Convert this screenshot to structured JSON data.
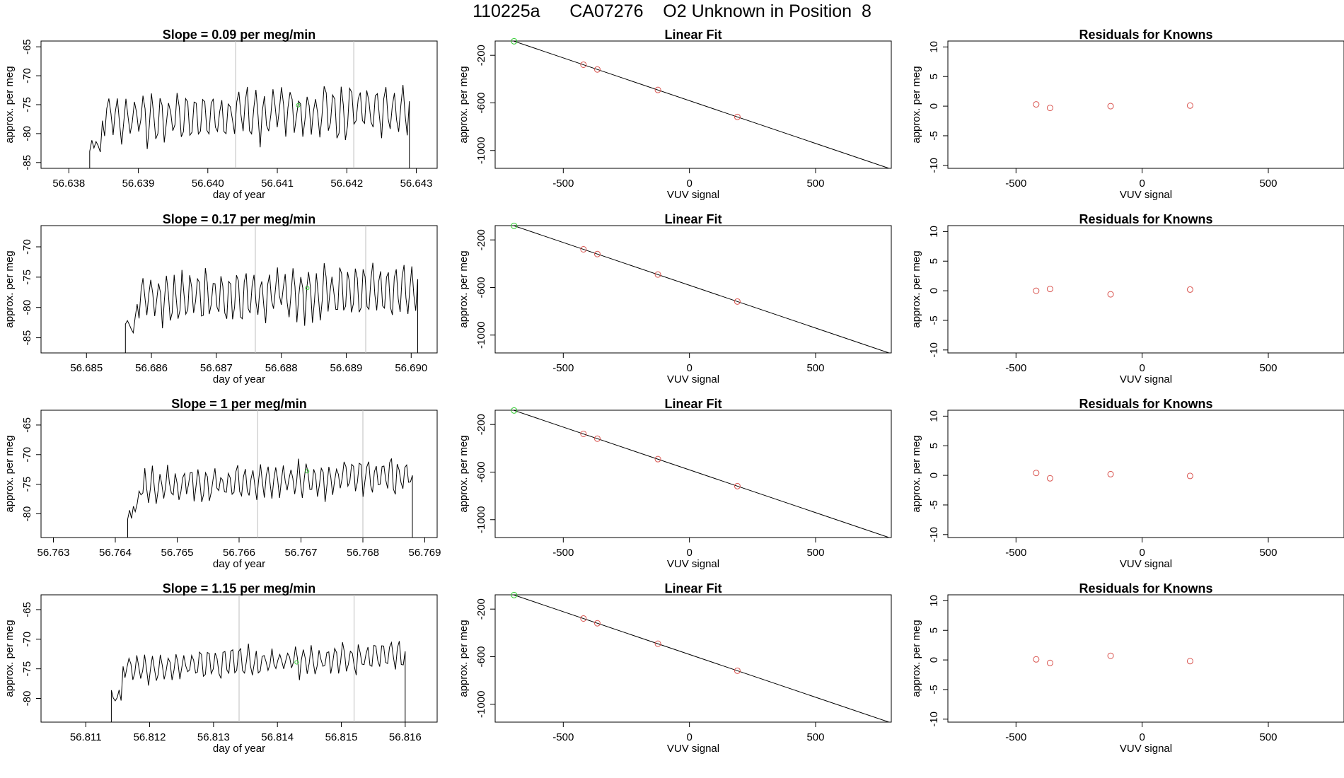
{
  "title": "110225a      CA07276    O2 Unknown in Position  8",
  "colors": {
    "line": "#000000",
    "known_point": "#d9544f",
    "unknown_point": "#33cc33",
    "marker_line": "#bdbdbd",
    "axis": "#000000"
  },
  "chart_data": [
    {
      "type": "line",
      "row": 1,
      "panel": "time-series",
      "title": "Slope =  0.09  per meg/min",
      "xlabel": "day of year",
      "ylabel": "approx. per meg",
      "xlim": [
        56.6376,
        56.6433
      ],
      "ylim": [
        -86,
        -64
      ],
      "xticks": [
        "56.638",
        "56.639",
        "56.640",
        "56.641",
        "56.642",
        "56.643"
      ],
      "yticks": [
        "-65",
        "-70",
        "-75",
        "-80",
        "-85"
      ],
      "series_start": 56.6383,
      "series_end": 56.6429,
      "base": -77.8,
      "amplitude": 4.5,
      "seed": 11,
      "vlines": [
        56.6404,
        56.6421
      ],
      "unknown_point": [
        56.6413,
        -75.1
      ]
    },
    {
      "type": "scatter",
      "row": 1,
      "panel": "linear-fit",
      "title": "Linear Fit",
      "xlabel": "VUV signal",
      "ylabel": "approx. per meg",
      "xlim": [
        -770,
        800
      ],
      "ylim": [
        -1150,
        -80
      ],
      "xticks": [
        "-500",
        "0",
        "500"
      ],
      "yticks": [
        "-200",
        "-600",
        "-1000"
      ],
      "fit_line": {
        "slope": -0.719,
        "intercept": -581.4,
        "x_from": -695,
        "x_to": 790
      },
      "known_points": [
        [
          -420,
          -279
        ],
        [
          -365,
          -319
        ],
        [
          -125,
          -491
        ],
        [
          190,
          -718
        ]
      ],
      "unknown_point": [
        -695,
        -82
      ]
    },
    {
      "type": "scatter",
      "row": 1,
      "panel": "residuals",
      "title": "Residuals for Knowns",
      "xlabel": "VUV signal",
      "ylabel": "approx. per meg",
      "xlim": [
        -770,
        800
      ],
      "ylim": [
        -10.5,
        11
      ],
      "xticks": [
        "-500",
        "0",
        "500"
      ],
      "yticks": [
        "10",
        "5",
        "0",
        "-5",
        "-10"
      ],
      "points": [
        [
          -420,
          0.3
        ],
        [
          -365,
          -0.3
        ],
        [
          -125,
          0.0
        ],
        [
          190,
          0.1
        ]
      ]
    },
    {
      "type": "line",
      "row": 2,
      "panel": "time-series",
      "title": "Slope =  0.17  per meg/min",
      "xlabel": "day of year",
      "ylabel": "approx. per meg",
      "xlim": [
        56.6843,
        56.6904
      ],
      "ylim": [
        -87.5,
        -66.5
      ],
      "xticks": [
        "56.685",
        "56.686",
        "56.687",
        "56.688",
        "56.689",
        "56.690"
      ],
      "yticks": [
        "-70",
        "-75",
        "-80",
        "-85"
      ],
      "series_start": 56.6856,
      "series_end": 56.6901,
      "base": -78.8,
      "amplitude": 4.8,
      "seed": 23,
      "vlines": [
        56.6876,
        56.6893
      ],
      "unknown_point": [
        56.6884,
        -76.8
      ]
    },
    {
      "type": "scatter",
      "row": 2,
      "panel": "linear-fit",
      "title": "Linear Fit",
      "xlabel": "VUV signal",
      "ylabel": "approx. per meg",
      "xlim": [
        -770,
        800
      ],
      "ylim": [
        -1150,
        -80
      ],
      "xticks": [
        "-500",
        "0",
        "500"
      ],
      "yticks": [
        "-200",
        "-600",
        "-1000"
      ],
      "fit_line": {
        "slope": -0.719,
        "intercept": -581.4,
        "x_from": -695,
        "x_to": 790
      },
      "known_points": [
        [
          -420,
          -279
        ],
        [
          -365,
          -319
        ],
        [
          -125,
          -491
        ],
        [
          190,
          -718
        ]
      ],
      "unknown_point": [
        -695,
        -82
      ]
    },
    {
      "type": "scatter",
      "row": 2,
      "panel": "residuals",
      "title": "Residuals for Knowns",
      "xlabel": "VUV signal",
      "ylabel": "approx. per meg",
      "xlim": [
        -770,
        800
      ],
      "ylim": [
        -10.5,
        11
      ],
      "xticks": [
        "-500",
        "0",
        "500"
      ],
      "yticks": [
        "10",
        "5",
        "0",
        "-5",
        "-10"
      ],
      "points": [
        [
          -420,
          0.0
        ],
        [
          -365,
          0.3
        ],
        [
          -125,
          -0.6
        ],
        [
          190,
          0.2
        ]
      ]
    },
    {
      "type": "line",
      "row": 3,
      "panel": "time-series",
      "title": "Slope =  1  per meg/min",
      "xlabel": "day of year",
      "ylabel": "approx. per meg",
      "xlim": [
        56.7628,
        56.7692
      ],
      "ylim": [
        -84,
        -62.5
      ],
      "xticks": [
        "56.763",
        "56.764",
        "56.765",
        "56.766",
        "56.767",
        "56.768",
        "56.769"
      ],
      "yticks": [
        "-65",
        "-70",
        "-75",
        "-80"
      ],
      "series_start": 56.7642,
      "series_end": 56.7688,
      "base": -75.5,
      "amplitude": 3.0,
      "seed": 37,
      "vlines": [
        56.7663,
        56.768
      ],
      "unknown_point": [
        56.7671,
        -72.8
      ]
    },
    {
      "type": "scatter",
      "row": 3,
      "panel": "linear-fit",
      "title": "Linear Fit",
      "xlabel": "VUV signal",
      "ylabel": "approx. per meg",
      "xlim": [
        -770,
        800
      ],
      "ylim": [
        -1150,
        -80
      ],
      "xticks": [
        "-500",
        "0",
        "500"
      ],
      "yticks": [
        "-200",
        "-600",
        "-1000"
      ],
      "fit_line": {
        "slope": -0.719,
        "intercept": -581.4,
        "x_from": -695,
        "x_to": 790
      },
      "known_points": [
        [
          -420,
          -279
        ],
        [
          -365,
          -319
        ],
        [
          -125,
          -491
        ],
        [
          190,
          -718
        ]
      ],
      "unknown_point": [
        -695,
        -82
      ]
    },
    {
      "type": "scatter",
      "row": 3,
      "panel": "residuals",
      "title": "Residuals for Knowns",
      "xlabel": "VUV signal",
      "ylabel": "approx. per meg",
      "xlim": [
        -770,
        800
      ],
      "ylim": [
        -10.5,
        11
      ],
      "xticks": [
        "-500",
        "0",
        "500"
      ],
      "yticks": [
        "10",
        "5",
        "0",
        "-5",
        "-10"
      ],
      "points": [
        [
          -420,
          0.4
        ],
        [
          -365,
          -0.5
        ],
        [
          -125,
          0.2
        ],
        [
          190,
          -0.1
        ]
      ]
    },
    {
      "type": "line",
      "row": 4,
      "panel": "time-series",
      "title": "Slope =  1.15  per meg/min",
      "xlabel": "day of year",
      "ylabel": "approx. per meg",
      "xlim": [
        56.8103,
        56.8165
      ],
      "ylim": [
        -84,
        -62.5
      ],
      "xticks": [
        "56.811",
        "56.812",
        "56.813",
        "56.814",
        "56.815",
        "56.816"
      ],
      "yticks": [
        "-65",
        "-70",
        "-75",
        "-80"
      ],
      "series_start": 56.8114,
      "series_end": 56.816,
      "base": -75.0,
      "amplitude": 2.8,
      "seed": 53,
      "vlines": [
        56.8134,
        56.8152
      ],
      "unknown_point": [
        56.8143,
        -73.9
      ]
    },
    {
      "type": "scatter",
      "row": 4,
      "panel": "linear-fit",
      "title": "Linear Fit",
      "xlabel": "VUV signal",
      "ylabel": "approx. per meg",
      "xlim": [
        -770,
        800
      ],
      "ylim": [
        -1150,
        -80
      ],
      "xticks": [
        "-500",
        "0",
        "500"
      ],
      "yticks": [
        "-200",
        "-600",
        "-1000"
      ],
      "fit_line": {
        "slope": -0.719,
        "intercept": -581.4,
        "x_from": -695,
        "x_to": 790
      },
      "known_points": [
        [
          -420,
          -279
        ],
        [
          -365,
          -319
        ],
        [
          -125,
          -491
        ],
        [
          190,
          -718
        ]
      ],
      "unknown_point": [
        -695,
        -82
      ]
    },
    {
      "type": "scatter",
      "row": 4,
      "panel": "residuals",
      "title": "Residuals for Knowns",
      "xlabel": "VUV signal",
      "ylabel": "approx. per meg",
      "xlim": [
        -770,
        800
      ],
      "ylim": [
        -10.5,
        11
      ],
      "xticks": [
        "-500",
        "0",
        "500"
      ],
      "yticks": [
        "10",
        "5",
        "0",
        "-5",
        "-10"
      ],
      "points": [
        [
          -420,
          0.1
        ],
        [
          -365,
          -0.5
        ],
        [
          -125,
          0.7
        ],
        [
          190,
          -0.2
        ]
      ]
    }
  ]
}
